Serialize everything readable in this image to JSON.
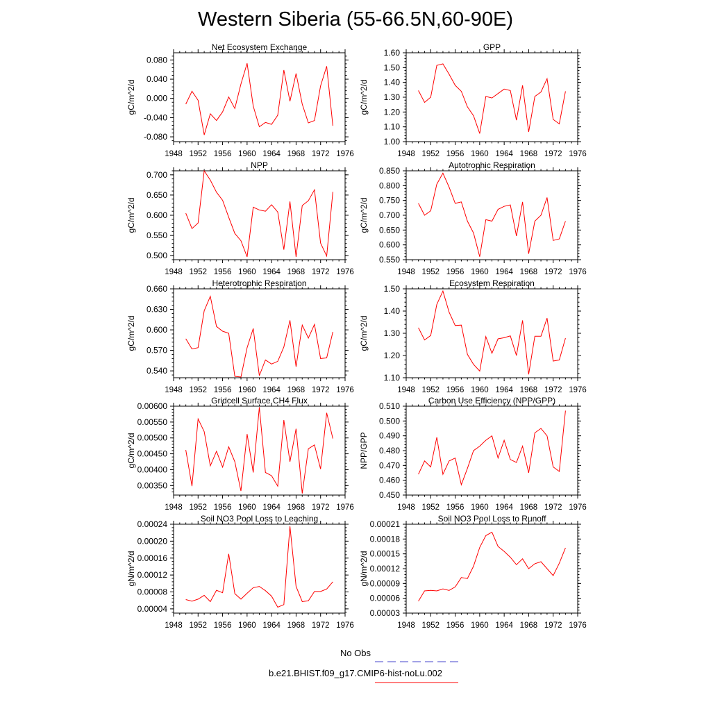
{
  "title": "Western Siberia (55-66.5N,60-90E)",
  "colors": {
    "model": "#ff0000",
    "obs": "#0000ff"
  },
  "legend": {
    "obs_label": "No Obs",
    "model_label": "b.e21.BHIST.f09_g17.CMIP6-hist-noLu.002"
  },
  "chart_data": [
    {
      "type": "line",
      "title": "Net Ecosystem Exchange",
      "ylabel": "gC/m^2/d",
      "xlim": [
        1948,
        1976
      ],
      "xticks": [
        1948,
        1952,
        1956,
        1960,
        1964,
        1968,
        1972,
        1976
      ],
      "ylim": [
        -0.09,
        0.095
      ],
      "yticks": [
        "-0.080",
        "-0.040",
        "0.000",
        "0.040",
        "0.080"
      ],
      "x": [
        1950,
        1951,
        1952,
        1953,
        1954,
        1955,
        1956,
        1957,
        1958,
        1959,
        1960,
        1961,
        1962,
        1963,
        1964,
        1965,
        1966,
        1967,
        1968,
        1969,
        1970,
        1971,
        1972,
        1973,
        1974
      ],
      "series": [
        {
          "values": [
            -0.012,
            0.015,
            -0.004,
            -0.076,
            -0.032,
            -0.046,
            -0.028,
            0.003,
            -0.021,
            0.03,
            0.073,
            -0.016,
            -0.059,
            -0.05,
            -0.054,
            -0.035,
            0.059,
            -0.006,
            0.052,
            -0.012,
            -0.051,
            -0.046,
            0.026,
            0.067,
            -0.057
          ]
        }
      ]
    },
    {
      "type": "line",
      "title": "GPP",
      "ylabel": "gC/m^2/d",
      "xlim": [
        1948,
        1976
      ],
      "xticks": [
        1948,
        1952,
        1956,
        1960,
        1964,
        1968,
        1972,
        1976
      ],
      "ylim": [
        1.0,
        1.6
      ],
      "yticks": [
        "1.00",
        "1.10",
        "1.20",
        "1.30",
        "1.40",
        "1.50",
        "1.60"
      ],
      "x": [
        1950,
        1951,
        1952,
        1953,
        1954,
        1955,
        1956,
        1957,
        1958,
        1959,
        1960,
        1961,
        1962,
        1963,
        1964,
        1965,
        1966,
        1967,
        1968,
        1969,
        1970,
        1971,
        1972,
        1973,
        1974
      ],
      "series": [
        {
          "values": [
            1.345,
            1.265,
            1.3,
            1.515,
            1.525,
            1.455,
            1.38,
            1.34,
            1.235,
            1.175,
            1.055,
            1.305,
            1.295,
            1.325,
            1.355,
            1.345,
            1.145,
            1.38,
            1.065,
            1.305,
            1.335,
            1.425,
            1.15,
            1.12,
            1.34
          ]
        }
      ]
    },
    {
      "type": "line",
      "title": "NPP",
      "ylabel": "gC/m^2/d",
      "xlim": [
        1948,
        1976
      ],
      "xticks": [
        1948,
        1952,
        1956,
        1960,
        1964,
        1968,
        1972,
        1976
      ],
      "ylim": [
        0.49,
        0.71
      ],
      "yticks": [
        "0.500",
        "0.550",
        "0.600",
        "0.650",
        "0.700"
      ],
      "x": [
        1950,
        1951,
        1952,
        1953,
        1954,
        1955,
        1956,
        1957,
        1958,
        1959,
        1960,
        1961,
        1962,
        1963,
        1964,
        1965,
        1966,
        1967,
        1968,
        1969,
        1970,
        1971,
        1972,
        1973,
        1974
      ],
      "series": [
        {
          "values": [
            0.605,
            0.567,
            0.581,
            0.71,
            0.687,
            0.657,
            0.637,
            0.595,
            0.555,
            0.537,
            0.497,
            0.62,
            0.613,
            0.61,
            0.626,
            0.608,
            0.515,
            0.634,
            0.497,
            0.624,
            0.636,
            0.663,
            0.531,
            0.499,
            0.658
          ]
        }
      ]
    },
    {
      "type": "line",
      "title": "Autotrophic Respiration",
      "ylabel": "gC/m^2/d",
      "xlim": [
        1948,
        1976
      ],
      "xticks": [
        1948,
        1952,
        1956,
        1960,
        1964,
        1968,
        1972,
        1976
      ],
      "ylim": [
        0.55,
        0.85
      ],
      "yticks": [
        "0.550",
        "0.600",
        "0.650",
        "0.700",
        "0.750",
        "0.800",
        "0.850"
      ],
      "x": [
        1950,
        1951,
        1952,
        1953,
        1954,
        1955,
        1956,
        1957,
        1958,
        1959,
        1960,
        1961,
        1962,
        1963,
        1964,
        1965,
        1966,
        1967,
        1968,
        1969,
        1970,
        1971,
        1972,
        1973,
        1974
      ],
      "series": [
        {
          "values": [
            0.74,
            0.7,
            0.715,
            0.805,
            0.842,
            0.795,
            0.74,
            0.745,
            0.68,
            0.64,
            0.56,
            0.685,
            0.68,
            0.72,
            0.73,
            0.735,
            0.63,
            0.745,
            0.57,
            0.68,
            0.7,
            0.76,
            0.615,
            0.62,
            0.68
          ]
        }
      ]
    },
    {
      "type": "line",
      "title": "Heterotrophic Respiration",
      "ylabel": "gC/m^2/d",
      "xlim": [
        1948,
        1976
      ],
      "xticks": [
        1948,
        1952,
        1956,
        1960,
        1964,
        1968,
        1972,
        1976
      ],
      "ylim": [
        0.53,
        0.66
      ],
      "yticks": [
        "0.540",
        "0.570",
        "0.600",
        "0.630",
        "0.660"
      ],
      "x": [
        1950,
        1951,
        1952,
        1953,
        1954,
        1955,
        1956,
        1957,
        1958,
        1959,
        1960,
        1961,
        1962,
        1963,
        1964,
        1965,
        1966,
        1967,
        1968,
        1969,
        1970,
        1971,
        1972,
        1973,
        1974
      ],
      "series": [
        {
          "values": [
            0.587,
            0.572,
            0.574,
            0.628,
            0.649,
            0.605,
            0.598,
            0.595,
            0.532,
            0.531,
            0.574,
            0.602,
            0.533,
            0.556,
            0.55,
            0.554,
            0.575,
            0.614,
            0.546,
            0.607,
            0.588,
            0.608,
            0.558,
            0.559,
            0.597
          ]
        }
      ]
    },
    {
      "type": "line",
      "title": "Ecosystem Respiration",
      "ylabel": "gC/m^2/d",
      "xlim": [
        1948,
        1976
      ],
      "xticks": [
        1948,
        1952,
        1956,
        1960,
        1964,
        1968,
        1972,
        1976
      ],
      "ylim": [
        1.1,
        1.5
      ],
      "yticks": [
        "1.10",
        "1.20",
        "1.30",
        "1.40",
        "1.50"
      ],
      "x": [
        1950,
        1951,
        1952,
        1953,
        1954,
        1955,
        1956,
        1957,
        1958,
        1959,
        1960,
        1961,
        1962,
        1963,
        1964,
        1965,
        1966,
        1967,
        1968,
        1969,
        1970,
        1971,
        1972,
        1973,
        1974
      ],
      "series": [
        {
          "values": [
            1.325,
            1.27,
            1.29,
            1.43,
            1.49,
            1.395,
            1.335,
            1.337,
            1.205,
            1.16,
            1.13,
            1.285,
            1.21,
            1.275,
            1.28,
            1.288,
            1.2,
            1.358,
            1.115,
            1.287,
            1.287,
            1.368,
            1.175,
            1.18,
            1.278
          ]
        }
      ]
    },
    {
      "type": "line",
      "title": "Gridcell Surface CH4 Flux",
      "ylabel": "gC/m^2/d",
      "xlim": [
        1948,
        1976
      ],
      "xticks": [
        1948,
        1952,
        1956,
        1960,
        1964,
        1968,
        1972,
        1976
      ],
      "ylim": [
        0.0032,
        0.006
      ],
      "yticks": [
        "0.00350",
        "0.00400",
        "0.00450",
        "0.00500",
        "0.00550",
        "0.00600"
      ],
      "x": [
        1950,
        1951,
        1952,
        1953,
        1954,
        1955,
        1956,
        1957,
        1958,
        1959,
        1960,
        1961,
        1962,
        1963,
        1964,
        1965,
        1966,
        1967,
        1968,
        1969,
        1970,
        1971,
        1972,
        1973,
        1974
      ],
      "series": [
        {
          "values": [
            0.00462,
            0.00348,
            0.0056,
            0.0052,
            0.00412,
            0.00458,
            0.00408,
            0.00472,
            0.00425,
            0.00333,
            0.00512,
            0.00391,
            0.00597,
            0.00391,
            0.00381,
            0.00348,
            0.00556,
            0.00425,
            0.00529,
            0.00325,
            0.00466,
            0.00478,
            0.00402,
            0.00579,
            0.00498
          ]
        }
      ]
    },
    {
      "type": "line",
      "title": "Carbon Use Efficiency (NPP/GPP)",
      "ylabel": "NPP/GPP",
      "xlim": [
        1948,
        1976
      ],
      "xticks": [
        1948,
        1952,
        1956,
        1960,
        1964,
        1968,
        1972,
        1976
      ],
      "ylim": [
        0.45,
        0.51
      ],
      "yticks": [
        "0.450",
        "0.460",
        "0.470",
        "0.480",
        "0.490",
        "0.500",
        "0.510"
      ],
      "x": [
        1950,
        1951,
        1952,
        1953,
        1954,
        1955,
        1956,
        1957,
        1958,
        1959,
        1960,
        1961,
        1962,
        1963,
        1964,
        1965,
        1966,
        1967,
        1968,
        1969,
        1970,
        1971,
        1972,
        1973,
        1974
      ],
      "series": [
        {
          "values": [
            0.464,
            0.473,
            0.469,
            0.489,
            0.464,
            0.473,
            0.475,
            0.457,
            0.468,
            0.48,
            0.483,
            0.487,
            0.49,
            0.475,
            0.487,
            0.474,
            0.472,
            0.483,
            0.465,
            0.492,
            0.495,
            0.49,
            0.469,
            0.466,
            0.507
          ]
        }
      ]
    },
    {
      "type": "line",
      "title": "Soil NO3 Pool Loss to Leaching",
      "ylabel": "gN/m^2/d",
      "xlim": [
        1948,
        1976
      ],
      "xticks": [
        1948,
        1952,
        1956,
        1960,
        1964,
        1968,
        1972,
        1976
      ],
      "ylim": [
        3e-05,
        0.00024
      ],
      "yticks": [
        "0.00004",
        "0.00008",
        "0.00012",
        "0.00016",
        "0.00020",
        "0.00024"
      ],
      "x": [
        1950,
        1951,
        1952,
        1953,
        1954,
        1955,
        1956,
        1957,
        1958,
        1959,
        1960,
        1961,
        1962,
        1963,
        1964,
        1965,
        1966,
        1967,
        1968,
        1969,
        1970,
        1971,
        1972,
        1973,
        1974
      ],
      "series": [
        {
          "values": [
            6.2e-05,
            5.8e-05,
            6.3e-05,
            7.2e-05,
            5.7e-05,
            8.4e-05,
            7.8e-05,
            0.00017,
            7.6e-05,
            6.3e-05,
            7.7e-05,
            9e-05,
            9.3e-05,
            8.3e-05,
            7e-05,
            4.4e-05,
            5e-05,
            0.000235,
            9.3e-05,
            5.7e-05,
            5.9e-05,
            8.1e-05,
            8.1e-05,
            8.7e-05,
            0.000104
          ]
        }
      ]
    },
    {
      "type": "line",
      "title": "Soil NO3 Pool Loss to Runoff",
      "ylabel": "gN/m^2/d",
      "xlim": [
        1948,
        1976
      ],
      "xticks": [
        1948,
        1952,
        1956,
        1960,
        1964,
        1968,
        1972,
        1976
      ],
      "ylim": [
        3e-05,
        0.00021
      ],
      "yticks": [
        "0.00003",
        "0.00006",
        "0.00009",
        "0.00012",
        "0.00015",
        "0.00018",
        "0.00021"
      ],
      "x": [
        1950,
        1951,
        1952,
        1953,
        1954,
        1955,
        1956,
        1957,
        1958,
        1959,
        1960,
        1961,
        1962,
        1963,
        1964,
        1965,
        1966,
        1967,
        1968,
        1969,
        1970,
        1971,
        1972,
        1973,
        1974
      ],
      "series": [
        {
          "values": [
            5.4e-05,
            7.5e-05,
            7.6e-05,
            7.5e-05,
            7.9e-05,
            7.6e-05,
            8.3e-05,
            0.000102,
            0.0001,
            0.000125,
            0.000163,
            0.000187,
            0.000194,
            0.000165,
            0.000155,
            0.000143,
            0.000128,
            0.00014,
            0.00012,
            0.00013,
            0.000134,
            0.00012,
            0.000106,
            0.000131,
            0.000162
          ]
        }
      ]
    }
  ]
}
